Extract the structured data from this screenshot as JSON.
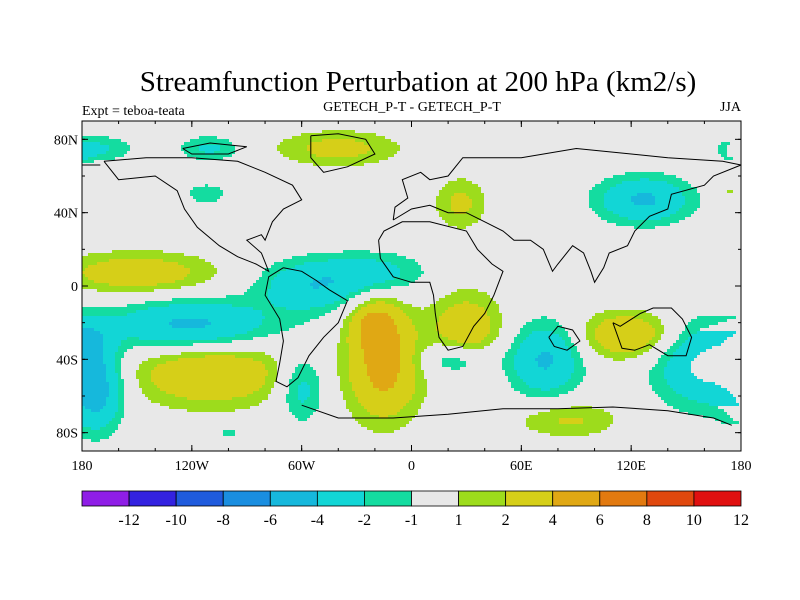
{
  "chart_data": {
    "type": "heatmap",
    "title": "Streamfunction Perturbation at 200 hPa (km2/s)",
    "left_label": "Expt = teboa-teata",
    "center_label": "GETECH_P-T - GETECH_P-T",
    "right_label": "JJA",
    "x_ticks": [
      {
        "value": -180,
        "label": "180"
      },
      {
        "value": -120,
        "label": "120W"
      },
      {
        "value": -60,
        "label": "60W"
      },
      {
        "value": 0,
        "label": "0"
      },
      {
        "value": 60,
        "label": "60E"
      },
      {
        "value": 120,
        "label": "120E"
      },
      {
        "value": 180,
        "label": "180"
      }
    ],
    "y_ticks": [
      {
        "value": 80,
        "label": "80N"
      },
      {
        "value": 40,
        "label": "40N"
      },
      {
        "value": 0,
        "label": "0"
      },
      {
        "value": -40,
        "label": "40S"
      },
      {
        "value": -80,
        "label": "80S"
      }
    ],
    "xlim": [
      -180,
      180
    ],
    "ylim": [
      -90,
      90
    ],
    "colorbar": {
      "labels": [
        "-12",
        "-10",
        "-8",
        "-6",
        "-4",
        "-2",
        "-1",
        "1",
        "2",
        "4",
        "6",
        "8",
        "10",
        "12"
      ],
      "levels": [
        -12,
        -10,
        -8,
        -6,
        -4,
        -2,
        -1,
        1,
        2,
        4,
        6,
        8,
        10,
        12
      ],
      "colors": [
        "#8f1ee6",
        "#3322e0",
        "#1f5bdd",
        "#1a8ee0",
        "#16b8dc",
        "#12d6d6",
        "#14dca0",
        "#e8e8e8",
        "#9ddc1c",
        "#d6cf18",
        "#e0a814",
        "#e27a10",
        "#e0480e",
        "#e01010"
      ]
    },
    "anomalies": [
      {
        "lon": -172,
        "lat": 75,
        "amp": -2.3,
        "slon": 14,
        "slat": 5
      },
      {
        "lon": -110,
        "lat": 75,
        "amp": -2.3,
        "slon": 12,
        "slat": 5
      },
      {
        "lon": -180,
        "lat": 47,
        "amp": -1.8,
        "slon": 5,
        "slat": 5
      },
      {
        "lon": -112,
        "lat": 50,
        "amp": -1.6,
        "slon": 9,
        "slat": 5
      },
      {
        "lon": -40,
        "lat": 75,
        "amp": 2.6,
        "slon": 24,
        "slat": 7
      },
      {
        "lon": 178,
        "lat": 73,
        "amp": -2.0,
        "slon": 5,
        "slat": 4
      },
      {
        "lon": 27,
        "lat": 45,
        "amp": 2.4,
        "slon": 10,
        "slat": 10
      },
      {
        "lon": 127,
        "lat": 47,
        "amp": -4.3,
        "slon": 18,
        "slat": 9
      },
      {
        "lon": 176,
        "lat": 50,
        "amp": 2.0,
        "slon": 5,
        "slat": 5
      },
      {
        "lon": -150,
        "lat": 7,
        "amp": 3.3,
        "slon": 30,
        "slat": 8
      },
      {
        "lon": -55,
        "lat": 0,
        "amp": -3.6,
        "slon": 20,
        "slat": 10
      },
      {
        "lon": -20,
        "lat": 7,
        "amp": -2.6,
        "slon": 20,
        "slat": 8
      },
      {
        "lon": -120,
        "lat": -22,
        "amp": -4.8,
        "slon": 30,
        "slat": 10
      },
      {
        "lon": -176,
        "lat": -30,
        "amp": -2.4,
        "slon": 8,
        "slat": 9
      },
      {
        "lon": -172,
        "lat": -58,
        "amp": -4.5,
        "slon": 10,
        "slat": 15
      },
      {
        "lon": -110,
        "lat": -47,
        "amp": 4.0,
        "slon": 30,
        "slat": 13
      },
      {
        "lon": -60,
        "lat": -55,
        "amp": -3.0,
        "slon": 9,
        "slat": 13
      },
      {
        "lon": -20,
        "lat": -20,
        "amp": 3.6,
        "slon": 10,
        "slat": 10
      },
      {
        "lon": -15,
        "lat": -45,
        "amp": 4.8,
        "slon": 14,
        "slat": 20
      },
      {
        "lon": 30,
        "lat": -25,
        "amp": 3.6,
        "slon": 14,
        "slat": 15
      },
      {
        "lon": 25,
        "lat": -40,
        "amp": -3.2,
        "slon": 14,
        "slat": 7
      },
      {
        "lon": 73,
        "lat": -40,
        "amp": -4.3,
        "slon": 14,
        "slat": 14
      },
      {
        "lon": 118,
        "lat": -27,
        "amp": 4.0,
        "slon": 18,
        "slat": 9
      },
      {
        "lon": 85,
        "lat": -73,
        "amp": 2.3,
        "slon": 20,
        "slat": 7
      },
      {
        "lon": 162,
        "lat": -43,
        "amp": -4.6,
        "slon": 20,
        "slat": 16
      },
      {
        "lon": -100,
        "lat": -80,
        "amp": -1.8,
        "slon": 4,
        "slat": 2
      }
    ]
  }
}
